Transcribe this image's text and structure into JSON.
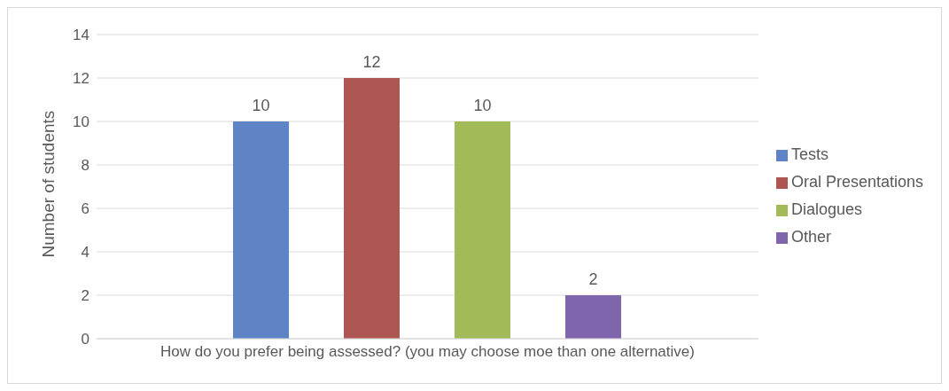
{
  "chart_data": {
    "type": "bar",
    "ylabel": "Number of students",
    "categories": [
      "How do you prefer being assessed? (you may choose moe than one alternative)"
    ],
    "series": [
      {
        "name": "Tests",
        "color": "#5f84c5",
        "values": [
          10
        ]
      },
      {
        "name": "Oral Presentations",
        "color": "#ad5652",
        "values": [
          12
        ]
      },
      {
        "name": "Dialogues",
        "color": "#a2bb58",
        "values": [
          10
        ]
      },
      {
        "name": "Other",
        "color": "#7f65ab",
        "values": [
          2
        ]
      }
    ],
    "ylim": [
      0,
      14
    ],
    "yticks": [
      0,
      2,
      4,
      6,
      8,
      10,
      12,
      14
    ],
    "grid": "y",
    "legend": "right",
    "data_labels": true
  }
}
